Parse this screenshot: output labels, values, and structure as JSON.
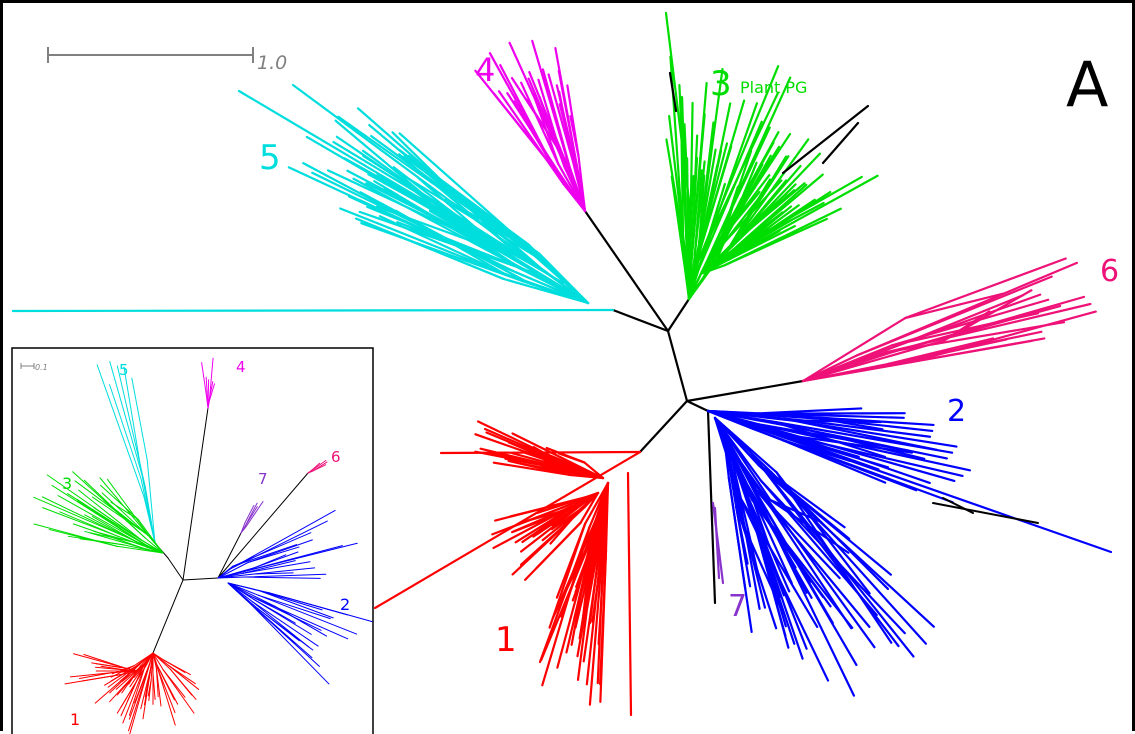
{
  "panel_letter": "A",
  "main_tree": {
    "scale_bar_label": "1.0",
    "clade_labels": [
      {
        "id": "1",
        "color": "#ff0000"
      },
      {
        "id": "2",
        "color": "#0000ff"
      },
      {
        "id": "3",
        "color": "#00dd00"
      },
      {
        "id": "4",
        "color": "#ee00ee"
      },
      {
        "id": "5",
        "color": "#00dddd"
      },
      {
        "id": "6",
        "color": "#ee1177"
      },
      {
        "id": "7",
        "color": "#8833cc"
      }
    ],
    "clade3_annotation": "Plant PG"
  },
  "inset_tree": {
    "scale_bar_label": "0.1",
    "clade_labels": [
      {
        "id": "1",
        "color": "#ff0000"
      },
      {
        "id": "2",
        "color": "#0000ff"
      },
      {
        "id": "3",
        "color": "#00dd00"
      },
      {
        "id": "4",
        "color": "#ee00ee"
      },
      {
        "id": "5",
        "color": "#00dddd"
      },
      {
        "id": "6",
        "color": "#ee1177"
      },
      {
        "id": "7",
        "color": "#8833cc"
      }
    ]
  },
  "colors": {
    "backbone": "#000000",
    "scale_bar": "#808080"
  }
}
